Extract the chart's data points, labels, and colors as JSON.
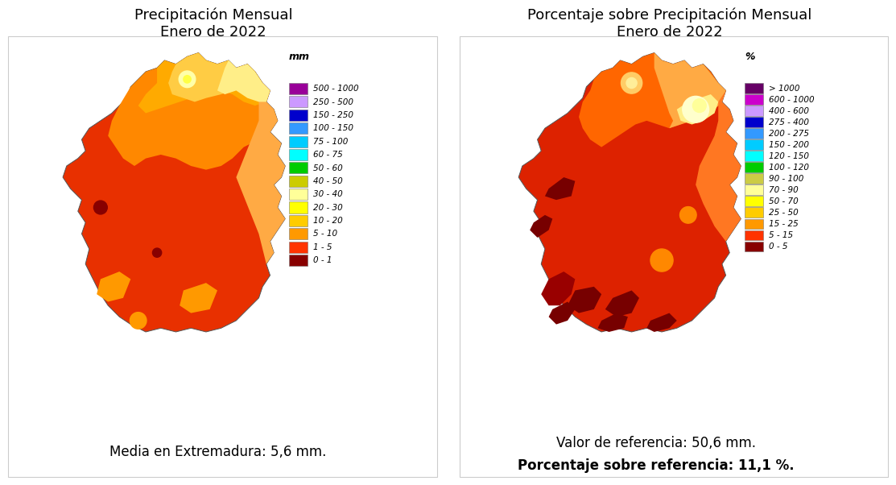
{
  "left_title": "Precipitación Mensual\nEnero de 2022",
  "right_title": "Porcentaje sobre Precipitación Mensual\nEnero de 2022",
  "left_subtitle": "Media en Extremadura: 5,6 mm.",
  "right_subtitle1": "Valor de referencia: 50,6 mm.",
  "right_subtitle2": "Porcentaje sobre referencia: 11,1 %.",
  "left_legend_title": "mm",
  "right_legend_title": "%",
  "left_legend": [
    {
      "color": "#990099",
      "label": "500 - 1000"
    },
    {
      "color": "#cc99ff",
      "label": "250 - 500"
    },
    {
      "color": "#0000cc",
      "label": "150 - 250"
    },
    {
      "color": "#3399ff",
      "label": "100 - 150"
    },
    {
      "color": "#00ccff",
      "label": "75 - 100"
    },
    {
      "color": "#00ffff",
      "label": "60 - 75"
    },
    {
      "color": "#00cc00",
      "label": "50 - 60"
    },
    {
      "color": "#cccc00",
      "label": "40 - 50"
    },
    {
      "color": "#ffff99",
      "label": "30 - 40"
    },
    {
      "color": "#ffff00",
      "label": "20 - 30"
    },
    {
      "color": "#ffcc00",
      "label": "10 - 20"
    },
    {
      "color": "#ff9900",
      "label": "5 - 10"
    },
    {
      "color": "#ff3300",
      "label": "1 - 5"
    },
    {
      "color": "#880000",
      "label": "0 - 1"
    }
  ],
  "right_legend": [
    {
      "color": "#660066",
      "label": "> 1000"
    },
    {
      "color": "#cc00cc",
      "label": "600 - 1000"
    },
    {
      "color": "#cc99ff",
      "label": "400 - 600"
    },
    {
      "color": "#0000cc",
      "label": "275 - 400"
    },
    {
      "color": "#3399ff",
      "label": "200 - 275"
    },
    {
      "color": "#00ccff",
      "label": "150 - 200"
    },
    {
      "color": "#00ffff",
      "label": "120 - 150"
    },
    {
      "color": "#00cc00",
      "label": "100 - 120"
    },
    {
      "color": "#cccc44",
      "label": "90 - 100"
    },
    {
      "color": "#ffff99",
      "label": "70 - 90"
    },
    {
      "color": "#ffff00",
      "label": "50 - 70"
    },
    {
      "color": "#ffcc00",
      "label": "25 - 50"
    },
    {
      "color": "#ff9900",
      "label": "15 - 25"
    },
    {
      "color": "#ff3300",
      "label": "5 - 15"
    },
    {
      "color": "#880000",
      "label": "0 - 5"
    }
  ],
  "bg_color": "#ffffff",
  "title_fontsize": 13,
  "legend_fontsize": 7.5,
  "subtitle_fontsize": 12
}
